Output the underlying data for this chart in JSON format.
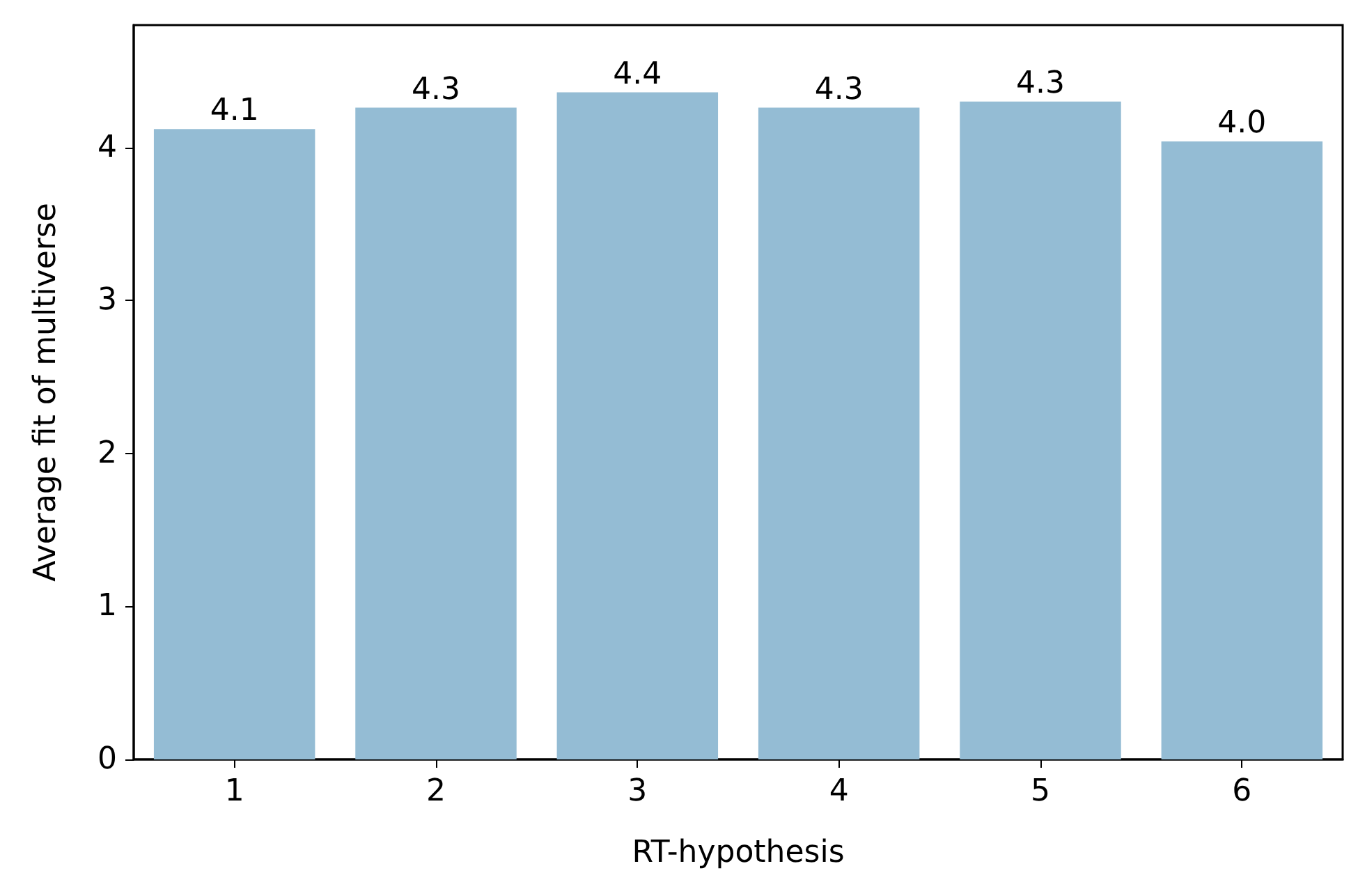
{
  "chart_data": {
    "type": "bar",
    "xlabel": "RT-hypothesis",
    "ylabel": "Average fit of multiverse",
    "categories": [
      "1",
      "2",
      "3",
      "4",
      "5",
      "6"
    ],
    "values": [
      4.12,
      4.26,
      4.36,
      4.26,
      4.3,
      4.04
    ],
    "value_labels": [
      "4.1",
      "4.3",
      "4.4",
      "4.3",
      "4.3",
      "4.0"
    ],
    "color": "#94bcd4",
    "ylim": [
      0,
      4.8
    ],
    "yticks": [
      0,
      1,
      2,
      3,
      4
    ],
    "grid": false
  }
}
